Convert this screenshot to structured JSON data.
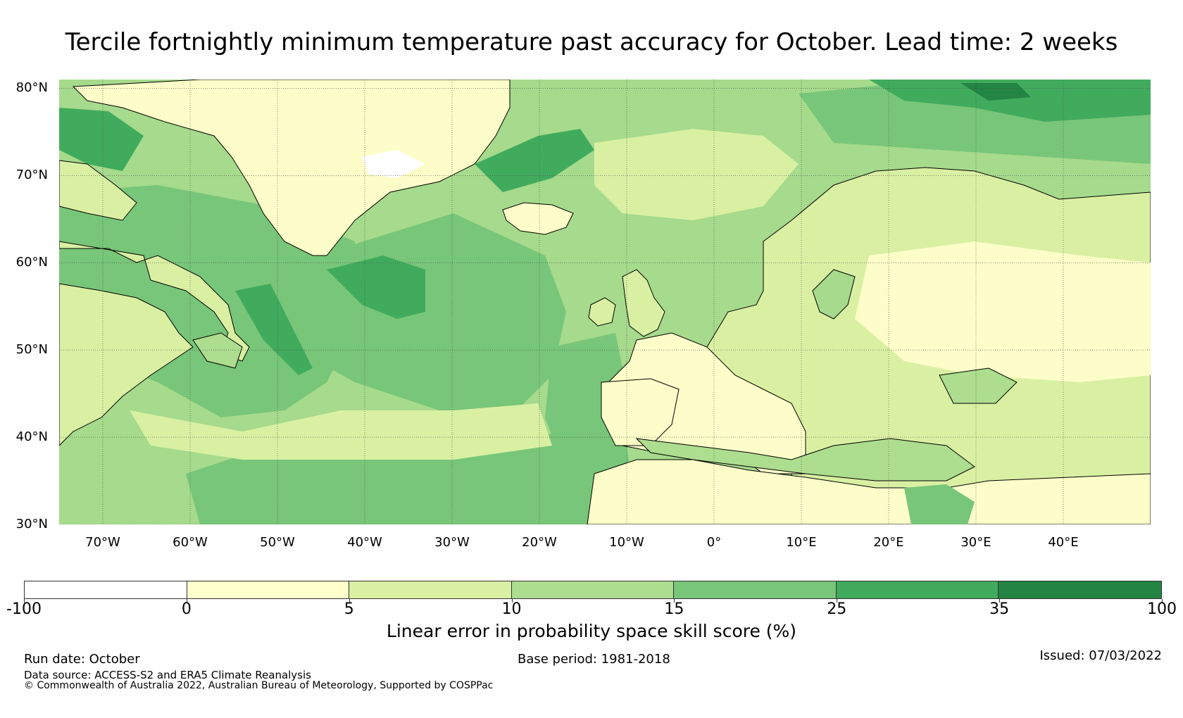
{
  "title": "Tercile fortnightly minimum temperature past accuracy for October. Lead time: 2 weeks",
  "map": {
    "lat_labels": [
      "80°N",
      "70°N",
      "60°N",
      "50°N",
      "40°N",
      "30°N"
    ],
    "lat_values": [
      80,
      70,
      60,
      50,
      40,
      30
    ],
    "lon_labels": [
      "70°W",
      "60°W",
      "50°W",
      "40°W",
      "30°W",
      "20°W",
      "10°W",
      "0°",
      "10°E",
      "20°E",
      "30°E",
      "40°E"
    ],
    "lon_values": [
      -70,
      -60,
      -50,
      -40,
      -30,
      -20,
      -10,
      0,
      10,
      20,
      30,
      40
    ],
    "lon_range": [
      -75,
      50
    ],
    "lat_range": [
      30,
      81
    ],
    "ocean_color": "#79c47a",
    "land_color": "#fcfdc8",
    "gridline_color": "#444444"
  },
  "colorbar": {
    "segments": [
      {
        "from": -100,
        "to": 0,
        "color": "#ffffff"
      },
      {
        "from": 0,
        "to": 5,
        "color": "#ffffcc"
      },
      {
        "from": 5,
        "to": 10,
        "color": "#d9f0a3"
      },
      {
        "from": 10,
        "to": 15,
        "color": "#addd8e"
      },
      {
        "from": 15,
        "to": 25,
        "color": "#78c679"
      },
      {
        "from": 25,
        "to": 35,
        "color": "#41ab5d"
      },
      {
        "from": 35,
        "to": 100,
        "color": "#238443"
      }
    ],
    "ticks": [
      "-100",
      "0",
      "5",
      "10",
      "15",
      "25",
      "35",
      "100"
    ],
    "label": "Linear error in probability space skill score (%)"
  },
  "footer": {
    "run_date": "Run date: October",
    "base_period": "Base period: 1981-2018",
    "issued": "Issued: 07/03/2022",
    "data_source": "Data source: ACCESS-S2 and ERA5 Climate Reanalysis",
    "copyright": "© Commonwealth of Australia 2022, Australian Bureau of Meteorology, Supported by COSPPac"
  }
}
